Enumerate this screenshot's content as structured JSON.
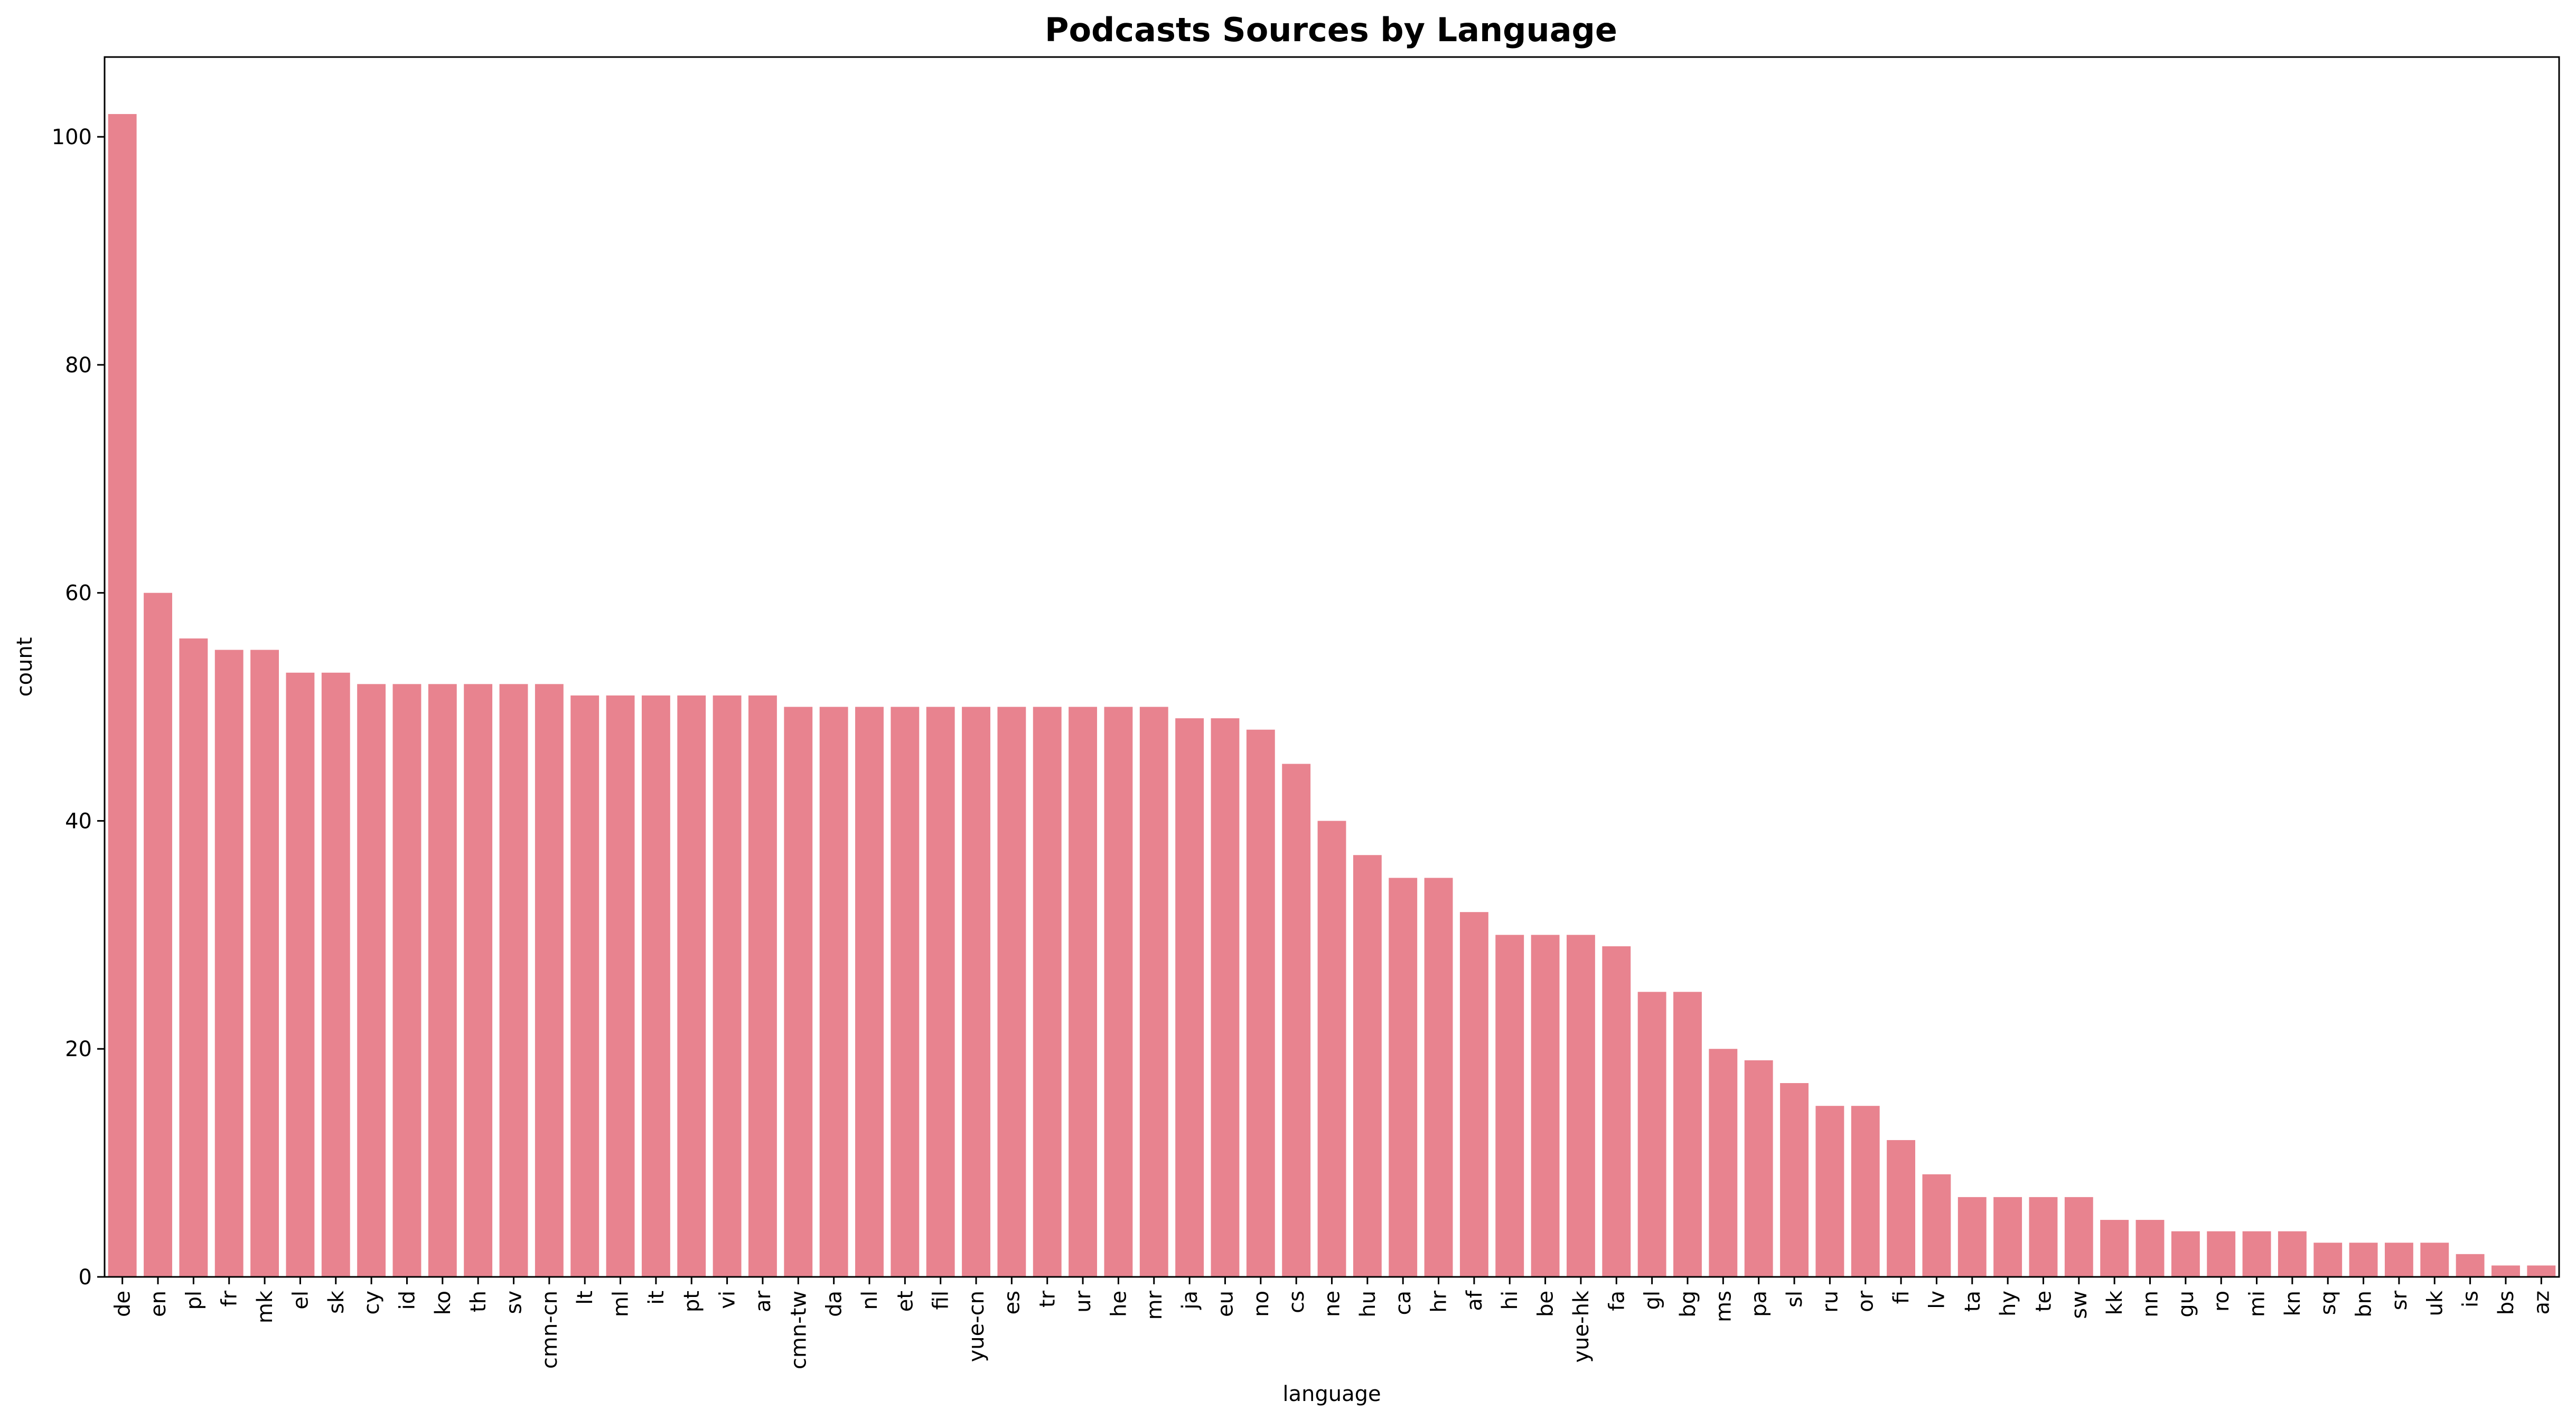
{
  "chart_data": {
    "type": "bar",
    "title": "Podcasts Sources by Language",
    "xlabel": "language",
    "ylabel": "count",
    "ylim": [
      0,
      107
    ],
    "yticks": [
      0,
      20,
      40,
      60,
      80,
      100
    ],
    "grid": false,
    "bar_color": "#e8838f",
    "categories": [
      "de",
      "en",
      "pl",
      "fr",
      "mk",
      "el",
      "sk",
      "cy",
      "id",
      "ko",
      "th",
      "sv",
      "cmn-cn",
      "lt",
      "ml",
      "it",
      "pt",
      "vi",
      "ar",
      "cmn-tw",
      "da",
      "nl",
      "et",
      "fil",
      "yue-cn",
      "es",
      "tr",
      "ur",
      "he",
      "mr",
      "ja",
      "eu",
      "no",
      "cs",
      "ne",
      "hu",
      "ca",
      "hr",
      "af",
      "hi",
      "be",
      "yue-hk",
      "fa",
      "gl",
      "bg",
      "ms",
      "pa",
      "sl",
      "ru",
      "or",
      "fi",
      "lv",
      "ta",
      "hy",
      "te",
      "sw",
      "kk",
      "nn",
      "gu",
      "ro",
      "mi",
      "kn",
      "sq",
      "bn",
      "sr",
      "uk",
      "is",
      "bs",
      "az"
    ],
    "values": [
      102,
      60,
      56,
      55,
      55,
      53,
      53,
      52,
      52,
      52,
      52,
      52,
      52,
      51,
      51,
      51,
      51,
      51,
      51,
      50,
      50,
      50,
      50,
      50,
      50,
      50,
      50,
      50,
      50,
      50,
      49,
      49,
      48,
      45,
      40,
      37,
      35,
      35,
      32,
      30,
      30,
      30,
      29,
      25,
      25,
      20,
      19,
      17,
      15,
      15,
      12,
      9,
      7,
      7,
      7,
      7,
      5,
      5,
      4,
      4,
      4,
      4,
      3,
      3,
      3,
      3,
      2,
      1,
      1
    ]
  }
}
